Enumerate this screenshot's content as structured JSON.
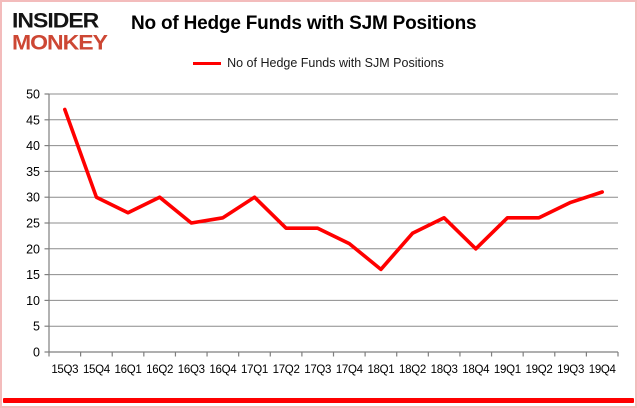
{
  "brand": {
    "line1": "INSIDER",
    "line2": "MONKEY"
  },
  "header": {
    "title": "No of Hedge Funds with SJM Positions"
  },
  "legend": {
    "label": "No of Hedge Funds with SJM Positions"
  },
  "chart_data": {
    "type": "line",
    "title": "No of Hedge Funds with SJM Positions",
    "categories": [
      "15Q3",
      "15Q4",
      "16Q1",
      "16Q2",
      "16Q3",
      "16Q4",
      "17Q1",
      "17Q2",
      "17Q3",
      "17Q4",
      "18Q1",
      "18Q2",
      "18Q3",
      "18Q4",
      "19Q1",
      "19Q2",
      "19Q3",
      "19Q4"
    ],
    "series": [
      {
        "name": "No of Hedge Funds with SJM Positions",
        "color": "#ff0000",
        "values": [
          47,
          30,
          27,
          30,
          25,
          26,
          30,
          24,
          24,
          21,
          16,
          23,
          26,
          20,
          26,
          26,
          29,
          31
        ]
      }
    ],
    "xlabel": "",
    "ylabel": "",
    "ylim": [
      0,
      50
    ],
    "ytick_step": 5,
    "grid": true,
    "legend_position": "top"
  },
  "colors": {
    "line": "#ff0000",
    "gridline": "#8c8c8c",
    "axis": "#7f7f7f",
    "accent_bar": "#fe0000",
    "frame_border": "#f3bcbc",
    "brand_red": "#cd4734",
    "text": "#000000"
  }
}
